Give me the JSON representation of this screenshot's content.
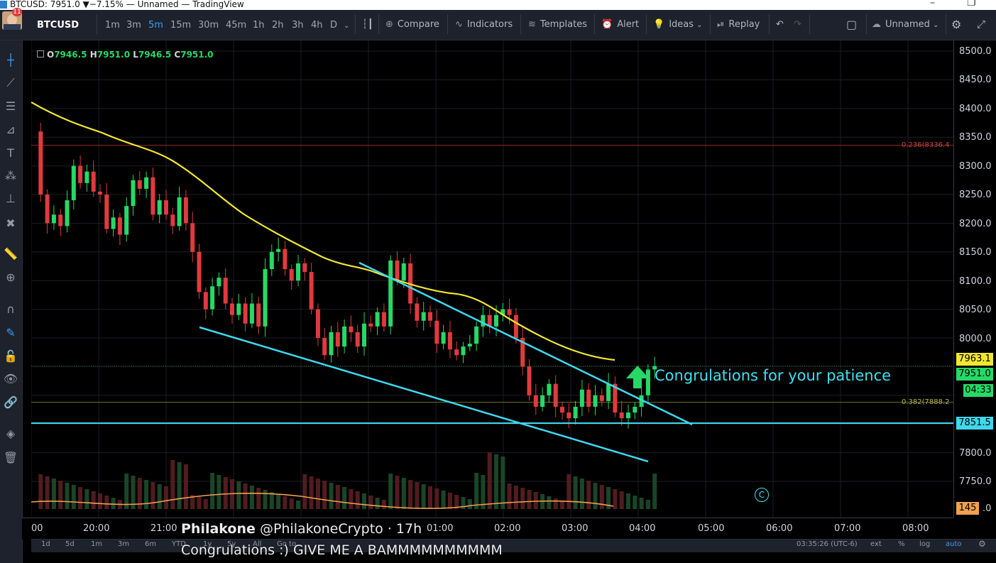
{
  "window": {
    "title": "BTCUSD: 7951.0 ▼−7.15% — Unnamed — TradingView",
    "minimize": "–",
    "restore": "❐"
  },
  "toolbar": {
    "notifications": "11",
    "symbol": "BTCUSD",
    "timeframes": [
      "1m",
      "3m",
      "5m",
      "15m",
      "30m",
      "45m",
      "1h",
      "2h",
      "3h",
      "4h",
      "D"
    ],
    "active_timeframe": "5m",
    "compare": "Compare",
    "indicators": "Indicators",
    "templates": "Templates",
    "alert": "Alert",
    "ideas": "Ideas",
    "replay": "Replay",
    "layout_name": "Unnamed"
  },
  "legend": {
    "o_label": "O",
    "o": "7946.5",
    "h_label": "H",
    "h": "7951.0",
    "l_label": "L",
    "l": "7946.5",
    "c_label": "C",
    "c": "7951.0"
  },
  "price_axis": {
    "ticks": [
      "8500.0",
      "8450.0",
      "8400.0",
      "8350.0",
      "8300.0",
      "8250.0",
      "8200.0",
      "8150.0",
      "8100.0",
      "8050.0",
      "8000.0",
      "7800.0",
      "7750.0"
    ],
    "ma_label": "7963.1",
    "last_price": "7951.0",
    "countdown": "04:33",
    "level_label": "7851.5",
    "volume_label": "145",
    "volume_suffix": ".0"
  },
  "fib_labels": {
    "f236": "0.236(8336.4",
    "f382": "0.382(7888.2"
  },
  "time_axis": {
    "ticks": [
      "00",
      "20:00",
      "21:00",
      "01:00",
      "02:00",
      "03:00",
      "04:00",
      "05:00",
      "06:00",
      "07:00",
      "08:00"
    ]
  },
  "bottom_bar": {
    "ranges": [
      "1d",
      "5d",
      "1m",
      "3m",
      "6m",
      "YTD",
      "1y",
      "5y",
      "All",
      "Go to..."
    ],
    "clock": "03:35:26 (UTC-6)",
    "ext": "ext",
    "pct": "%",
    "log": "log",
    "auto": "auto"
  },
  "overlay": {
    "author_name": "Philakone",
    "handle": "@PhilakoneCrypto",
    "time": "· 17h",
    "comment": "Congrulations :) GIVE ME A BAMMMMMMMMMM"
  },
  "annotation": {
    "text": "Congrulations for your patience",
    "badge": "C"
  },
  "colors": {
    "up": "#26d966",
    "down": "#e03a3e",
    "ma": "#f2e633",
    "trend": "#3fd7ee",
    "accent": "#3b9df6"
  }
}
